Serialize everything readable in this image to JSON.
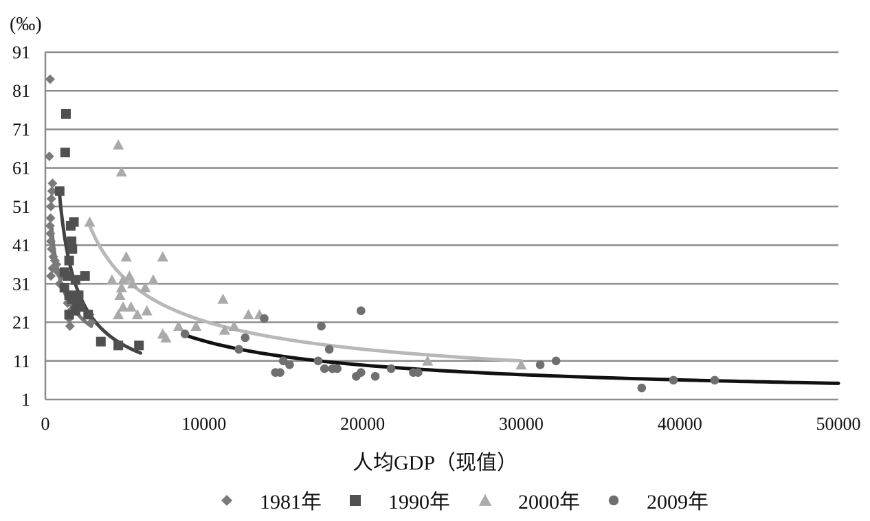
{
  "chart_data": {
    "type": "scatter",
    "title": "",
    "y_unit_label": "(‰)",
    "xlabel": "人均GDP（现值）",
    "ylabel": "",
    "xlim": [
      0,
      50000
    ],
    "ylim": [
      1,
      91
    ],
    "x_ticks": [
      0,
      10000,
      20000,
      30000,
      40000,
      50000
    ],
    "y_ticks": [
      1,
      11,
      21,
      31,
      41,
      51,
      61,
      71,
      81,
      91
    ],
    "grid": "horizontal",
    "legend_position": "bottom",
    "series": [
      {
        "name": "1981年",
        "marker": "diamond",
        "color": "#7a7a7a",
        "points": [
          [
            300,
            84
          ],
          [
            250,
            64
          ],
          [
            450,
            57
          ],
          [
            420,
            55
          ],
          [
            380,
            53
          ],
          [
            350,
            51
          ],
          [
            330,
            48
          ],
          [
            300,
            46
          ],
          [
            320,
            44
          ],
          [
            350,
            42
          ],
          [
            400,
            40
          ],
          [
            500,
            38
          ],
          [
            600,
            37
          ],
          [
            450,
            35
          ],
          [
            350,
            33
          ],
          [
            700,
            36
          ],
          [
            800,
            34
          ],
          [
            1000,
            33
          ],
          [
            1200,
            30
          ],
          [
            900,
            31
          ],
          [
            1400,
            26
          ],
          [
            1600,
            24
          ],
          [
            1500,
            22
          ],
          [
            1550,
            20
          ],
          [
            2000,
            27
          ],
          [
            2200,
            25
          ],
          [
            2800,
            23
          ],
          [
            2900,
            21
          ]
        ]
      },
      {
        "name": "1990年",
        "marker": "square",
        "color": "#505050",
        "points": [
          [
            1300,
            75
          ],
          [
            1250,
            65
          ],
          [
            900,
            55
          ],
          [
            1800,
            47
          ],
          [
            1600,
            46
          ],
          [
            1650,
            42
          ],
          [
            1700,
            40
          ],
          [
            1500,
            37
          ],
          [
            1200,
            34
          ],
          [
            1400,
            33
          ],
          [
            1900,
            32
          ],
          [
            2500,
            33
          ],
          [
            1200,
            30
          ],
          [
            1500,
            28
          ],
          [
            1700,
            27
          ],
          [
            1500,
            23
          ],
          [
            2100,
            28
          ],
          [
            2000,
            26
          ],
          [
            1900,
            24
          ],
          [
            2200,
            25
          ],
          [
            2700,
            23
          ],
          [
            3500,
            16
          ],
          [
            4600,
            15
          ],
          [
            5900,
            15
          ]
        ]
      },
      {
        "name": "2000年",
        "marker": "triangle",
        "color": "#aaaaaa",
        "points": [
          [
            4600,
            67
          ],
          [
            4800,
            60
          ],
          [
            2800,
            47
          ],
          [
            5100,
            38
          ],
          [
            7400,
            38
          ],
          [
            4200,
            32
          ],
          [
            4900,
            32
          ],
          [
            5300,
            33
          ],
          [
            6800,
            32
          ],
          [
            4800,
            30
          ],
          [
            5500,
            31
          ],
          [
            6300,
            30
          ],
          [
            4700,
            28
          ],
          [
            4900,
            25
          ],
          [
            5400,
            25
          ],
          [
            6400,
            24
          ],
          [
            4600,
            23
          ],
          [
            5800,
            23
          ],
          [
            7400,
            18
          ],
          [
            7600,
            17
          ],
          [
            8400,
            20
          ],
          [
            9500,
            20
          ],
          [
            11200,
            27
          ],
          [
            11300,
            19
          ],
          [
            11900,
            20
          ],
          [
            12800,
            23
          ],
          [
            13500,
            23
          ],
          [
            24100,
            11
          ],
          [
            30000,
            10
          ]
        ]
      },
      {
        "name": "2009年",
        "marker": "circle",
        "color": "#6f6f6f",
        "points": [
          [
            8800,
            18
          ],
          [
            12200,
            14
          ],
          [
            12600,
            17
          ],
          [
            13800,
            22
          ],
          [
            14500,
            8
          ],
          [
            14800,
            8
          ],
          [
            15000,
            11
          ],
          [
            15400,
            10
          ],
          [
            17200,
            11
          ],
          [
            17400,
            20
          ],
          [
            17600,
            9
          ],
          [
            17900,
            14
          ],
          [
            18100,
            9
          ],
          [
            18400,
            9
          ],
          [
            19600,
            7
          ],
          [
            19900,
            8
          ],
          [
            19900,
            24
          ],
          [
            20800,
            7
          ],
          [
            21800,
            9
          ],
          [
            23200,
            8
          ],
          [
            23500,
            8
          ],
          [
            31200,
            10
          ],
          [
            32200,
            11
          ],
          [
            37600,
            4
          ],
          [
            39600,
            6
          ],
          [
            42200,
            6
          ]
        ]
      }
    ],
    "trendlines": [
      {
        "series": "1981年",
        "color": "#757575",
        "x_start": 400,
        "x_end": 2900
      },
      {
        "series": "1990年",
        "color": "#444444",
        "x_start": 900,
        "x_end": 6000
      },
      {
        "series": "2000年",
        "color": "#b8b8b8",
        "x_start": 2800,
        "x_end": 30000
      },
      {
        "series": "2009年",
        "color": "#111111",
        "x_start": 8800,
        "x_end": 50000
      }
    ]
  }
}
